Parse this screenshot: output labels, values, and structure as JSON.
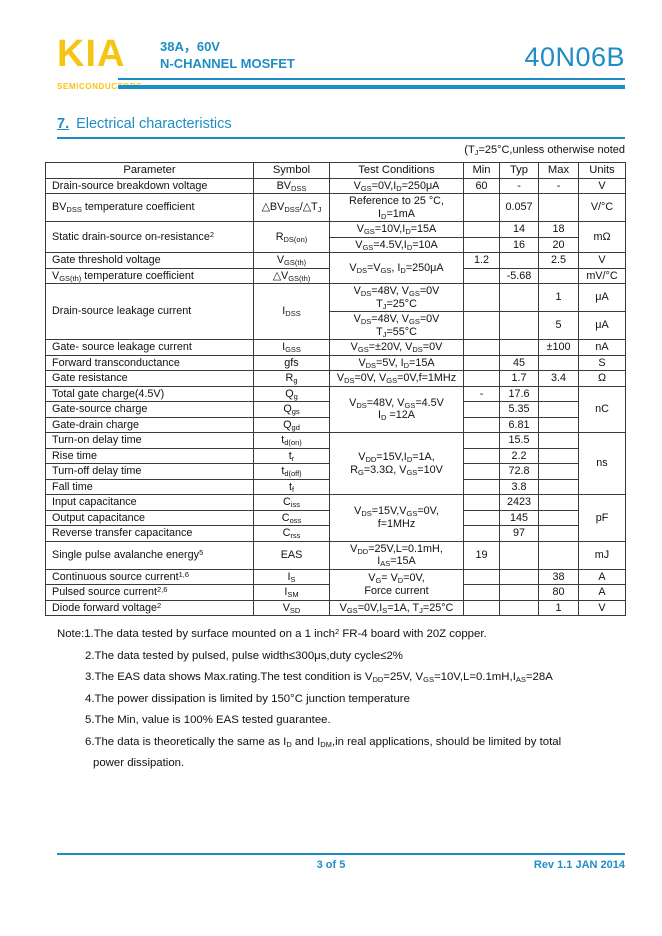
{
  "colors": {
    "accent_blue": "#1f8dc5",
    "logo_yellow": "#f6c513"
  },
  "header": {
    "logo": "KIA",
    "logo_sub": "SEMICONDUCTORS",
    "subtitle_line1": "38A，60V",
    "subtitle_line2": "N-CHANNEL MOSFET",
    "part_number": "40N06B"
  },
  "section": {
    "number": "7.",
    "title": "Electrical characteristics"
  },
  "table": {
    "note_above": "(T_{J}=25°C,unless otherwise noted",
    "columns": [
      "Parameter",
      "Symbol",
      "Test Conditions",
      "Min",
      "Typ",
      "Max",
      "Units"
    ],
    "rows": [
      [
        {
          "t": "Drain-source breakdown voltage",
          "a": "l"
        },
        {
          "t": "BV_{DSS}"
        },
        {
          "t": "V_{GS}=0V,I_{D}=250μA"
        },
        {
          "t": "60"
        },
        {
          "t": "-"
        },
        {
          "t": "-"
        },
        {
          "t": "V"
        }
      ],
      [
        {
          "t": "BV_{DSS} temperature coefficient",
          "a": "l"
        },
        {
          "t": "△BV_{DSS}/△T_{J}"
        },
        {
          "t": "Reference to 25 °C,\nI_{D}=1mA"
        },
        {
          "t": ""
        },
        {
          "t": "0.057"
        },
        {
          "t": ""
        },
        {
          "t": "V/°C"
        }
      ],
      [
        {
          "t": "Static drain-source on-resistance^{2}",
          "a": "l",
          "rs": 2
        },
        {
          "t": "R_{DS(on)}",
          "rs": 2
        },
        {
          "t": "V_{GS}=10V,I_{D}=15A"
        },
        {
          "t": ""
        },
        {
          "t": "14"
        },
        {
          "t": "18"
        },
        {
          "t": "mΩ",
          "rs": 2
        }
      ],
      [
        {
          "t": "V_{GS}=4.5V,I_{D}=10A"
        },
        {
          "t": ""
        },
        {
          "t": "16"
        },
        {
          "t": "20"
        }
      ],
      [
        {
          "t": "Gate threshold voltage",
          "a": "l"
        },
        {
          "t": "V_{GS(th)}"
        },
        {
          "t": "V_{DS}=V_{GS}, I_{D}=250μA",
          "rs": 2
        },
        {
          "t": "1.2"
        },
        {
          "t": ""
        },
        {
          "t": "2.5"
        },
        {
          "t": "V"
        }
      ],
      [
        {
          "t": "V_{GS(th)} temperature coefficient",
          "a": "l"
        },
        {
          "t": "△V_{GS(th)}"
        },
        {
          "t": ""
        },
        {
          "t": "-5.68"
        },
        {
          "t": ""
        },
        {
          "t": "mV/°C"
        }
      ],
      [
        {
          "t": "Drain-source leakage current",
          "a": "l",
          "rs": 2
        },
        {
          "t": "I_{DSS}",
          "rs": 2
        },
        {
          "t": "V_{DS}=48V, V_{GS}=0V\nT_{J}=25°C"
        },
        {
          "t": ""
        },
        {
          "t": ""
        },
        {
          "t": "1"
        },
        {
          "t": "μA"
        }
      ],
      [
        {
          "t": "V_{DS}=48V, V_{GS}=0V\nT_{J}=55°C"
        },
        {
          "t": ""
        },
        {
          "t": ""
        },
        {
          "t": "5"
        },
        {
          "t": "μA"
        }
      ],
      [
        {
          "t": "Gate- source leakage current",
          "a": "l"
        },
        {
          "t": "I_{GSS}"
        },
        {
          "t": "V_{GS}=±20V, V_{DS}=0V"
        },
        {
          "t": ""
        },
        {
          "t": ""
        },
        {
          "t": "±100"
        },
        {
          "t": "nA"
        }
      ],
      [
        {
          "t": "Forward transconductance",
          "a": "l"
        },
        {
          "t": "gfs"
        },
        {
          "t": "V_{DS}=5V, I_{D}=15A"
        },
        {
          "t": ""
        },
        {
          "t": "45"
        },
        {
          "t": ""
        },
        {
          "t": "S"
        }
      ],
      [
        {
          "t": "Gate resistance",
          "a": "l"
        },
        {
          "t": "R_{g}"
        },
        {
          "t": "V_{DS}=0V, V_{GS}=0V,f=1MHz"
        },
        {
          "t": ""
        },
        {
          "t": "1.7"
        },
        {
          "t": "3.4"
        },
        {
          "t": "Ω"
        }
      ],
      [
        {
          "t": "Total gate charge(4.5V)",
          "a": "l"
        },
        {
          "t": "Q_{g}"
        },
        {
          "t": "V_{DS}=48V, V_{GS}=4.5V\nI_{D} =12A",
          "rs": 3
        },
        {
          "t": "-"
        },
        {
          "t": "17.6"
        },
        {
          "t": ""
        },
        {
          "t": "nC",
          "rs": 3
        }
      ],
      [
        {
          "t": "Gate-source charge",
          "a": "l"
        },
        {
          "t": "Q_{gs}"
        },
        {
          "t": ""
        },
        {
          "t": "5.35"
        },
        {
          "t": ""
        }
      ],
      [
        {
          "t": "Gate-drain charge",
          "a": "l"
        },
        {
          "t": "Q_{gd}"
        },
        {
          "t": ""
        },
        {
          "t": "6.81"
        },
        {
          "t": ""
        }
      ],
      [
        {
          "t": "Turn-on delay time",
          "a": "l"
        },
        {
          "t": "t_{d(on)}"
        },
        {
          "t": "V_{DD}=15V,I_{D}=1A,\nR_{G}=3.3Ω, V_{GS}=10V",
          "rs": 4
        },
        {
          "t": ""
        },
        {
          "t": "15.5"
        },
        {
          "t": ""
        },
        {
          "t": "ns",
          "rs": 4
        }
      ],
      [
        {
          "t": "Rise time",
          "a": "l"
        },
        {
          "t": "t_{r}"
        },
        {
          "t": ""
        },
        {
          "t": "2.2"
        },
        {
          "t": ""
        }
      ],
      [
        {
          "t": "Turn-off delay time",
          "a": "l"
        },
        {
          "t": "t_{d(off)}"
        },
        {
          "t": ""
        },
        {
          "t": "72.8"
        },
        {
          "t": ""
        }
      ],
      [
        {
          "t": "Fall time",
          "a": "l"
        },
        {
          "t": "t_{f}"
        },
        {
          "t": ""
        },
        {
          "t": "3.8"
        },
        {
          "t": ""
        }
      ],
      [
        {
          "t": "Input capacitance",
          "a": "l"
        },
        {
          "t": "C_{iss}"
        },
        {
          "t": "V_{DS}=15V,V_{GS}=0V,\nf=1MHz",
          "rs": 3
        },
        {
          "t": ""
        },
        {
          "t": "2423"
        },
        {
          "t": ""
        },
        {
          "t": "pF",
          "rs": 3
        }
      ],
      [
        {
          "t": "Output capacitance",
          "a": "l"
        },
        {
          "t": "C_{oss}"
        },
        {
          "t": ""
        },
        {
          "t": "145"
        },
        {
          "t": ""
        }
      ],
      [
        {
          "t": "Reverse transfer capacitance",
          "a": "l"
        },
        {
          "t": "C_{rss}"
        },
        {
          "t": ""
        },
        {
          "t": "97"
        },
        {
          "t": ""
        }
      ],
      [
        {
          "t": "Single pulse avalanche energy^{5}",
          "a": "l"
        },
        {
          "t": "EAS"
        },
        {
          "t": "V_{DD}=25V,L=0.1mH,\nI_{AS}=15A"
        },
        {
          "t": "19"
        },
        {
          "t": ""
        },
        {
          "t": ""
        },
        {
          "t": "mJ"
        }
      ],
      [
        {
          "t": "Continuous source current^{1,6}",
          "a": "l"
        },
        {
          "t": "I_{S}"
        },
        {
          "t": "V_{G}= V_{D}=0V,\nForce current",
          "rs": 2
        },
        {
          "t": ""
        },
        {
          "t": ""
        },
        {
          "t": "38"
        },
        {
          "t": "A"
        }
      ],
      [
        {
          "t": "Pulsed source current^{2,6}",
          "a": "l"
        },
        {
          "t": "I_{SM}"
        },
        {
          "t": ""
        },
        {
          "t": ""
        },
        {
          "t": "80"
        },
        {
          "t": "A"
        }
      ],
      [
        {
          "t": "Diode forward voltage^{2}",
          "a": "l"
        },
        {
          "t": "V_{SD}"
        },
        {
          "t": "V_{GS}=0V,I_{S}=1A, T_{J}=25°C"
        },
        {
          "t": ""
        },
        {
          "t": ""
        },
        {
          "t": "1"
        },
        {
          "t": "V"
        }
      ]
    ]
  },
  "notes": [
    {
      "t": "Note:1.The data tested by surface mounted on a 1 inch^{2}  FR-4 board with 20Z copper.",
      "ind": 0
    },
    {
      "t": "2.The data tested by pulsed, pulse width≤300μs,duty cycle≤2%",
      "ind": 1
    },
    {
      "t": "3.The EAS data shows Max.rating.The test condition is V_{DD}=25V, V_{GS}=10V,L=0.1mH,I_{AS}=28A",
      "ind": 1
    },
    {
      "t": "4.The power dissipation is limited by 150°C junction temperature",
      "ind": 1
    },
    {
      "t": "5.The Min, value is 100% EAS tested guarantee.",
      "ind": 1
    },
    {
      "t": "6.The data is theoretically the same as I_{D} and I_{DM},in real applications, should be limited by total",
      "ind": 1
    },
    {
      "t": "power dissipation.",
      "ind": 2
    }
  ],
  "footer": {
    "page": "3 of 5",
    "rev": "Rev 1.1 JAN 2014"
  }
}
